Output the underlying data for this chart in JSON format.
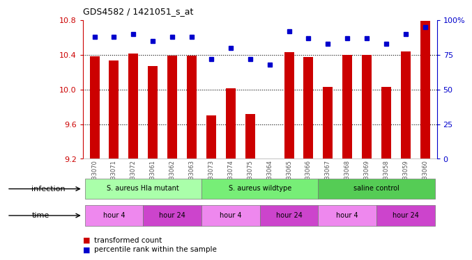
{
  "title": "GDS4582 / 1421051_s_at",
  "samples": [
    "GSM933070",
    "GSM933071",
    "GSM933072",
    "GSM933061",
    "GSM933062",
    "GSM933063",
    "GSM933073",
    "GSM933074",
    "GSM933075",
    "GSM933064",
    "GSM933065",
    "GSM933066",
    "GSM933067",
    "GSM933068",
    "GSM933069",
    "GSM933058",
    "GSM933059",
    "GSM933060"
  ],
  "bar_values": [
    10.38,
    10.33,
    10.41,
    10.27,
    10.39,
    10.39,
    9.7,
    10.01,
    9.72,
    9.2,
    10.43,
    10.37,
    10.03,
    10.4,
    10.4,
    10.03,
    10.44,
    10.79
  ],
  "dot_values": [
    88,
    88,
    90,
    85,
    88,
    88,
    72,
    80,
    72,
    68,
    92,
    87,
    83,
    87,
    87,
    83,
    90,
    95
  ],
  "ylim_left": [
    9.2,
    10.8
  ],
  "ylim_right": [
    0,
    100
  ],
  "yticks_left": [
    9.2,
    9.6,
    10.0,
    10.4,
    10.8
  ],
  "yticks_right": [
    0,
    25,
    50,
    75,
    100
  ],
  "bar_color": "#cc0000",
  "dot_color": "#0000cc",
  "bg_color": "#ffffff",
  "infection_groups": [
    {
      "label": "S. aureus Hla mutant",
      "start": 0,
      "end": 5,
      "color": "#aaffaa"
    },
    {
      "label": "S. aureus wildtype",
      "start": 6,
      "end": 11,
      "color": "#77ee77"
    },
    {
      "label": "saline control",
      "start": 12,
      "end": 17,
      "color": "#55cc55"
    }
  ],
  "time_groups": [
    {
      "label": "hour 4",
      "start": 0,
      "end": 2,
      "color": "#ee88ee"
    },
    {
      "label": "hour 24",
      "start": 3,
      "end": 5,
      "color": "#cc44cc"
    },
    {
      "label": "hour 4",
      "start": 6,
      "end": 8,
      "color": "#ee88ee"
    },
    {
      "label": "hour 24",
      "start": 9,
      "end": 11,
      "color": "#cc44cc"
    },
    {
      "label": "hour 4",
      "start": 12,
      "end": 14,
      "color": "#ee88ee"
    },
    {
      "label": "hour 24",
      "start": 15,
      "end": 17,
      "color": "#cc44cc"
    }
  ],
  "xlabel_color": "#555555",
  "left_axis_color": "#cc0000",
  "right_axis_color": "#0000cc",
  "gridline_values": [
    9.6,
    10.0,
    10.4
  ]
}
